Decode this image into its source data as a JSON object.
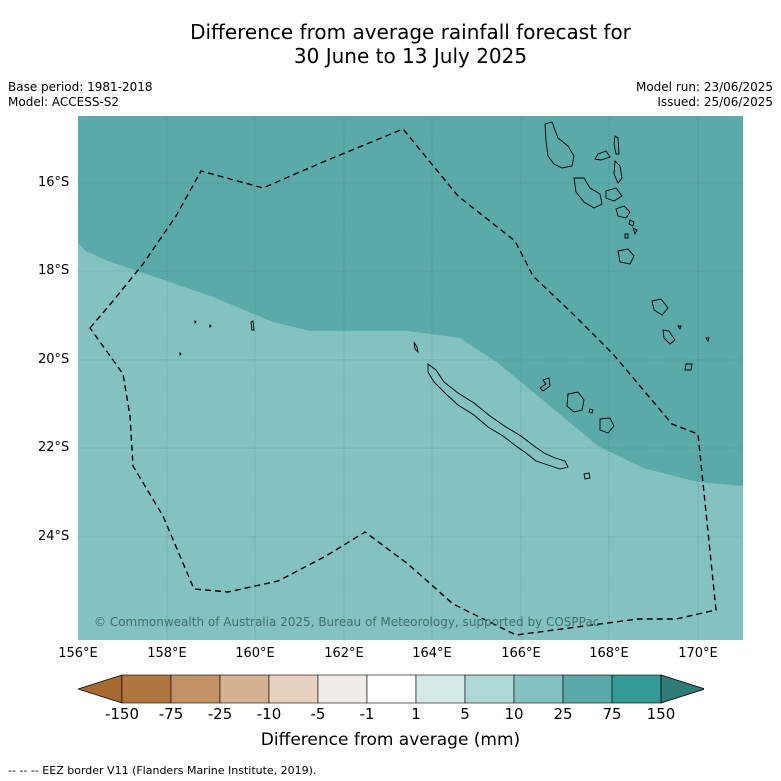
{
  "title": {
    "line1": "Difference from average rainfall forecast for",
    "line2": "30 June to 13 July 2025"
  },
  "meta": {
    "base_period": "Base period: 1981-2018",
    "model": "Model: ACCESS-S2",
    "model_run": "Model run: 23/06/2025",
    "issued": "Issued: 25/06/2025"
  },
  "map": {
    "lat_ticks": [
      "16°S",
      "18°S",
      "20°S",
      "22°S",
      "24°S"
    ],
    "lon_ticks": [
      "156°E",
      "158°E",
      "160°E",
      "162°E",
      "164°E",
      "166°E",
      "168°E",
      "170°E"
    ],
    "copyright": "© Commonwealth of Australia 2025, Bureau of Meteorology, supported by COSPPac",
    "colors": {
      "band_25_75": "#5aaaaa",
      "band_10_25": "#84c1c1"
    }
  },
  "colorbar": {
    "labels": [
      "-150",
      "-75",
      "-25",
      "-10",
      "-5",
      "-1",
      "1",
      "5",
      "10",
      "25",
      "75",
      "150"
    ],
    "colors": [
      "#a66a30",
      "#b07840",
      "#c49266",
      "#d4b292",
      "#e6d2be",
      "#f0ede8",
      "#ffffff",
      "#d5eae8",
      "#add8d6",
      "#84c1c1",
      "#5aaaaa",
      "#339994",
      "#2e7b78"
    ],
    "title": "Difference from average (mm)"
  },
  "footer": "-- -- -- EEZ border V11 (Flanders Marine Institute, 2019)."
}
